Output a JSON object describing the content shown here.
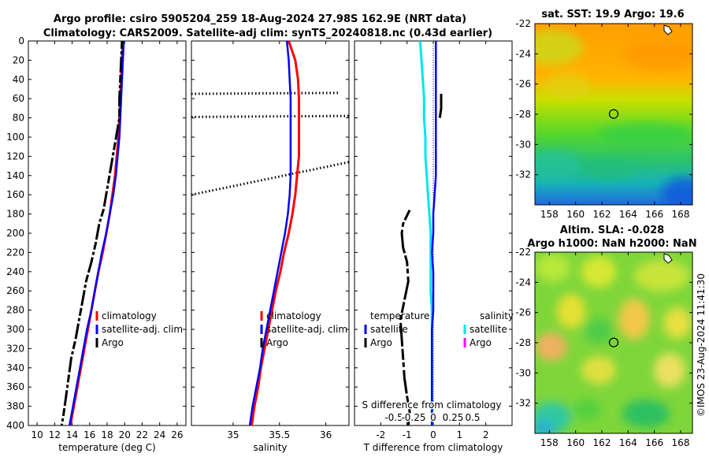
{
  "title": {
    "line1": "Argo profile: csiro 5905204_259 18-Aug-2024 27.98S 162.9E (NRT data)",
    "line2": "Climatology: CARS2009. Satellite-adj clim: synTS_20240818.nc (0.43d earlier)"
  },
  "watermark": "©IMOS 23-Aug-2024 11:41:30",
  "colors": {
    "climatology": "#ff0000",
    "satellite": "#0000ff",
    "argo": "#000000",
    "sal_satellite": "#00e5ee",
    "sal_argo": "#ff00ff"
  },
  "chart_data": [
    {
      "type": "line",
      "panel": "temperature",
      "xlabel": "temperature (deg C)",
      "ylabel": "depth",
      "xlim": [
        9,
        27
      ],
      "ylim": [
        400,
        0
      ],
      "xticks": [
        10,
        12,
        14,
        16,
        18,
        20,
        22,
        24,
        26
      ],
      "yticks": [
        0,
        20,
        40,
        60,
        80,
        100,
        120,
        140,
        160,
        180,
        200,
        220,
        240,
        260,
        280,
        300,
        320,
        340,
        360,
        380,
        400
      ],
      "legend": [
        "climatology",
        "satellite-adj. clim",
        "Argo"
      ],
      "series": [
        {
          "name": "climatology",
          "depth": [
            0,
            20,
            40,
            60,
            80,
            100,
            120,
            140,
            160,
            180,
            200,
            220,
            240,
            260,
            280,
            300,
            320,
            340,
            360,
            380,
            400
          ],
          "values": [
            19.8,
            19.7,
            19.6,
            19.5,
            19.4,
            19.3,
            19.1,
            18.9,
            18.6,
            18.3,
            17.9,
            17.5,
            17.0,
            16.6,
            16.2,
            15.8,
            15.4,
            15.0,
            14.6,
            14.2,
            13.8
          ]
        },
        {
          "name": "satellite-adj. clim",
          "depth": [
            0,
            20,
            40,
            60,
            80,
            100,
            120,
            140,
            160,
            180,
            200,
            220,
            240,
            260,
            280,
            300,
            320,
            340,
            360,
            380,
            400
          ],
          "values": [
            19.9,
            19.8,
            19.7,
            19.6,
            19.5,
            19.4,
            19.2,
            19.0,
            18.7,
            18.3,
            17.9,
            17.4,
            17.0,
            16.6,
            16.2,
            15.7,
            15.3,
            14.9,
            14.5,
            14.1,
            13.7
          ]
        },
        {
          "name": "Argo",
          "depth": [
            0,
            20,
            40,
            60,
            80,
            175,
            190,
            210,
            230,
            250,
            270,
            290,
            310,
            330,
            350,
            370,
            390,
            400
          ],
          "values": [
            19.7,
            19.6,
            19.5,
            19.4,
            19.4,
            17.6,
            17.1,
            16.7,
            16.2,
            15.6,
            15.2,
            14.8,
            14.4,
            13.9,
            13.6,
            13.3,
            13.0,
            12.8
          ]
        }
      ]
    },
    {
      "type": "line",
      "panel": "salinity",
      "xlabel": "salinity",
      "xlim": [
        34.55,
        36.25
      ],
      "ylim": [
        400,
        0
      ],
      "xticks": [
        35,
        35.5,
        36
      ],
      "legend": [
        "climatology",
        "satellite-adj. clim",
        "Argo"
      ],
      "series": [
        {
          "name": "climatology",
          "depth": [
            0,
            20,
            40,
            60,
            80,
            100,
            120,
            140,
            160,
            180,
            200,
            220,
            240,
            260,
            280,
            300,
            320,
            340,
            360,
            380,
            400
          ],
          "values": [
            35.6,
            35.67,
            35.7,
            35.71,
            35.71,
            35.71,
            35.71,
            35.69,
            35.67,
            35.64,
            35.6,
            35.55,
            35.51,
            35.46,
            35.42,
            35.38,
            35.34,
            35.3,
            35.27,
            35.23,
            35.2
          ]
        },
        {
          "name": "satellite-adj. clim",
          "depth": [
            0,
            20,
            40,
            60,
            80,
            100,
            120,
            140,
            160,
            180,
            200,
            220,
            240,
            260,
            280,
            300,
            320,
            340,
            360,
            380,
            400
          ],
          "values": [
            35.58,
            35.6,
            35.61,
            35.62,
            35.62,
            35.62,
            35.62,
            35.62,
            35.61,
            35.59,
            35.56,
            35.52,
            35.48,
            35.44,
            35.4,
            35.36,
            35.32,
            35.29,
            35.25,
            35.21,
            35.18
          ]
        },
        {
          "name": "Argo",
          "depth": [],
          "values": []
        }
      ],
      "annotations": [
        {
          "type": "dotted-line",
          "from": [
            34.55,
            55
          ],
          "to": [
            36.15,
            54
          ]
        },
        {
          "type": "dotted-line",
          "from": [
            34.55,
            79
          ],
          "to": [
            36.25,
            78
          ]
        },
        {
          "type": "dotted-line",
          "from": [
            34.55,
            160
          ],
          "to": [
            36.25,
            126
          ]
        }
      ]
    },
    {
      "type": "line",
      "panel": "difference",
      "xlabel": "T difference from climatology",
      "xlabel_top": "S difference from climatology",
      "xlim": [
        -3,
        3
      ],
      "ylim": [
        400,
        0
      ],
      "xticks": [
        -2,
        -1,
        0,
        1,
        2
      ],
      "xticks_s": [
        -0.5,
        -0.25,
        0,
        0.25,
        0.5
      ],
      "xticklabels_s": [
        "-0.5",
        "-0.25",
        "0",
        "0.25",
        "0.5"
      ],
      "legend_temperature_title": "temperature",
      "legend_salinity_title": "salinity",
      "legend_temperature": [
        "satellite",
        "Argo"
      ],
      "legend_salinity": [
        "satellite",
        "Argo"
      ],
      "series": [
        {
          "name": "temperature satellite",
          "depth": [
            0,
            20,
            40,
            60,
            80,
            100,
            120,
            140,
            160,
            180,
            200,
            220,
            240,
            260,
            280,
            300,
            320,
            340,
            360,
            380,
            400
          ],
          "values": [
            0.1,
            0.1,
            0.1,
            0.1,
            0.1,
            0.1,
            0.1,
            0.1,
            0.05,
            0.0,
            0.0,
            -0.05,
            0.0,
            0.0,
            0.0,
            -0.05,
            -0.05,
            -0.05,
            -0.05,
            -0.05,
            -0.05
          ]
        },
        {
          "name": "temperature Argo",
          "depth": [
            55,
            60,
            70,
            80,
            176,
            190,
            200,
            215,
            230,
            250,
            270,
            290,
            310,
            330,
            350,
            370,
            385,
            400
          ],
          "values": [
            0.3,
            0.3,
            0.3,
            0.25,
            -0.9,
            -1.15,
            -1.2,
            -1.15,
            -1.0,
            -0.95,
            -1.1,
            -1.25,
            -1.2,
            -1.15,
            -1.1,
            -1.0,
            -0.9,
            -0.95
          ]
        },
        {
          "name": "salinity satellite",
          "depth": [
            0,
            20,
            40,
            60,
            80,
            100,
            120,
            140,
            160,
            180,
            200,
            220,
            240,
            260,
            280,
            300,
            320,
            340,
            360,
            380,
            400
          ],
          "values": [
            -0.5,
            -0.45,
            -0.4,
            -0.35,
            -0.35,
            -0.3,
            -0.3,
            -0.25,
            -0.2,
            -0.15,
            -0.1,
            -0.1,
            -0.1,
            -0.1,
            -0.05,
            -0.05,
            -0.05,
            -0.05,
            -0.05,
            -0.05,
            -0.05
          ]
        },
        {
          "name": "salinity Argo",
          "depth": [],
          "values": []
        }
      ]
    },
    {
      "type": "heatmap",
      "panel": "sst-map",
      "title": "sat. SST: 19.9 Argo: 19.6",
      "xlim": [
        156.9,
        168.9
      ],
      "ylim": [
        -34,
        -22
      ],
      "xticks": [
        158,
        160,
        162,
        164,
        166,
        168
      ],
      "yticks": [
        -22,
        -24,
        -26,
        -28,
        -30,
        -32
      ],
      "marker": {
        "lon": 162.9,
        "lat": -27.98
      }
    },
    {
      "type": "heatmap",
      "panel": "sla-map",
      "title_line1": "Altim. SLA: -0.028",
      "title_line2": "Argo h1000: NaN h2000: NaN",
      "xlim": [
        156.9,
        168.9
      ],
      "ylim": [
        -34,
        -22
      ],
      "xticks": [
        158,
        160,
        162,
        164,
        166,
        168
      ],
      "yticks": [
        -22,
        -24,
        -26,
        -28,
        -30,
        -32
      ],
      "marker": {
        "lon": 162.9,
        "lat": -27.98
      }
    }
  ]
}
